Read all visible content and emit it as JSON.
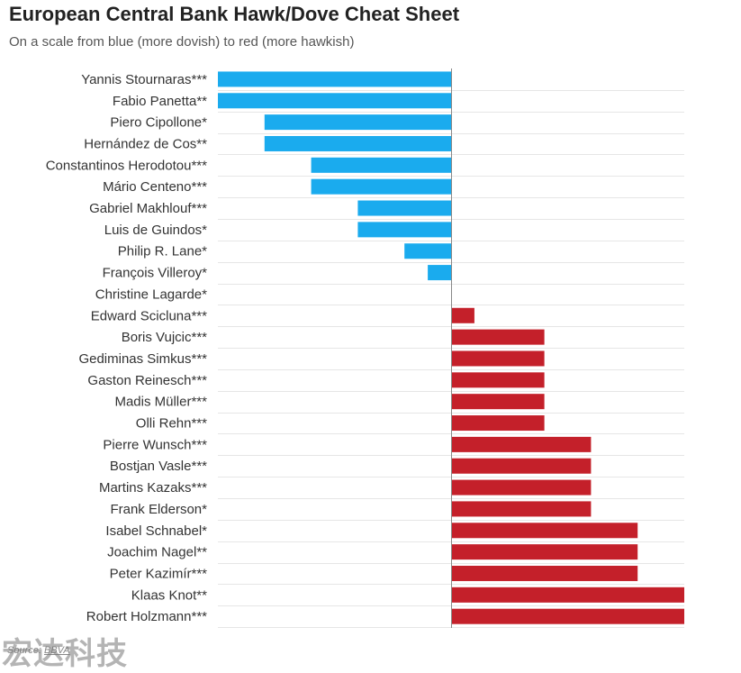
{
  "header": {
    "title": "European Central Bank Hawk/Dove Cheat Sheet",
    "subtitle": "On a scale from blue (more dovish) to red (more hawkish)"
  },
  "source": {
    "prefix": "Source:",
    "name": "BBVA"
  },
  "watermark": {
    "text": "宏达科技"
  },
  "colors": {
    "dove": "#1AABEE",
    "hawk": "#C4202A",
    "grid": "#e6e6e6",
    "axis": "#888888"
  },
  "chart_data": {
    "type": "bar",
    "orientation": "horizontal",
    "title": "European Central Bank Hawk/Dove Cheat Sheet",
    "subtitle": "On a scale from blue (more dovish) to red (more hawkish)",
    "xlim": [
      -5,
      5
    ],
    "grid": true,
    "categories": [
      "Yannis Stournaras***",
      "Fabio Panetta**",
      "Piero Cipollone*",
      "Hernández de Cos**",
      "Constantinos Herodotou***",
      "Mário Centeno***",
      "Gabriel Makhlouf***",
      "Luis de Guindos*",
      "Philip R. Lane*",
      "François Villeroy*",
      "Christine Lagarde*",
      "Edward Scicluna***",
      "Boris Vujcic***",
      "Gediminas Simkus***",
      "Gaston Reinesch***",
      "Madis Müller***",
      "Olli Rehn***",
      "Pierre Wunsch***",
      "Bostjan Vasle***",
      "Martins Kazaks***",
      "Frank Elderson*",
      "Isabel Schnabel*",
      "Joachim Nagel**",
      "Peter Kazimír***",
      "Klaas Knot**",
      "Robert Holzmann***"
    ],
    "values": [
      -5,
      -5,
      -4,
      -4,
      -3,
      -3,
      -2,
      -2,
      -1,
      -0.5,
      0,
      0.5,
      2,
      2,
      2,
      2,
      2,
      3,
      3,
      3,
      3,
      4,
      4,
      4,
      5,
      5
    ]
  }
}
